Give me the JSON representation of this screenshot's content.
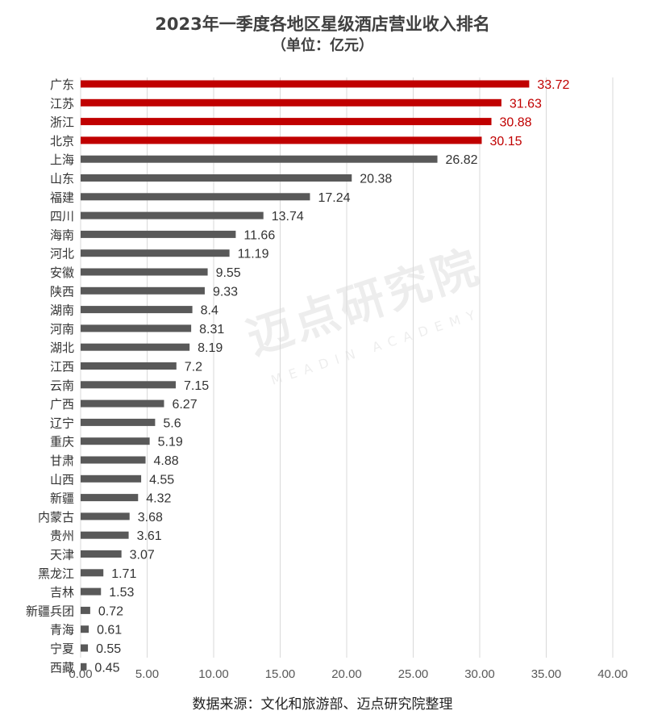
{
  "chart_data": {
    "type": "bar",
    "orientation": "horizontal",
    "title": "2023年一季度各地区星级酒店营业收入排名",
    "subtitle": "（单位：亿元）",
    "source": "数据来源：文化和旅游部、迈点研究院整理",
    "watermark": {
      "main": "迈点研究院",
      "sub": "MEADIN ACADEMY"
    },
    "categories": [
      "广东",
      "江苏",
      "浙江",
      "北京",
      "上海",
      "山东",
      "福建",
      "四川",
      "海南",
      "河北",
      "安徽",
      "陕西",
      "湖南",
      "河南",
      "湖北",
      "江西",
      "云南",
      "广西",
      "辽宁",
      "重庆",
      "甘肃",
      "山西",
      "新疆",
      "内蒙古",
      "贵州",
      "天津",
      "黑龙江",
      "吉林",
      "新疆兵团",
      "青海",
      "宁夏",
      "西藏"
    ],
    "values": [
      33.72,
      31.63,
      30.88,
      30.15,
      26.82,
      20.38,
      17.24,
      13.74,
      11.66,
      11.19,
      9.55,
      9.33,
      8.4,
      8.31,
      8.19,
      7.2,
      7.15,
      6.27,
      5.6,
      5.19,
      4.88,
      4.55,
      4.32,
      3.68,
      3.61,
      3.07,
      1.71,
      1.53,
      0.72,
      0.61,
      0.55,
      0.45
    ],
    "value_labels": [
      "33.72",
      "31.63",
      "30.88",
      "30.15",
      "26.82",
      "20.38",
      "17.24",
      "13.74",
      "11.66",
      "11.19",
      "9.55",
      "9.33",
      "8.4",
      "8.31",
      "8.19",
      "7.2",
      "7.15",
      "6.27",
      "5.6",
      "5.19",
      "4.88",
      "4.55",
      "4.32",
      "3.68",
      "3.61",
      "3.07",
      "1.71",
      "1.53",
      "0.72",
      "0.61",
      "0.55",
      "0.45"
    ],
    "highlight_top_n": 4,
    "xlim": [
      0,
      40
    ],
    "xticks": [
      "0.00",
      "5.00",
      "10.00",
      "15.00",
      "20.00",
      "25.00",
      "30.00",
      "35.00",
      "40.00"
    ],
    "grid": true,
    "colors": {
      "highlight": "#c00000",
      "default": "#595959",
      "grid": "#d9d9d9"
    }
  }
}
